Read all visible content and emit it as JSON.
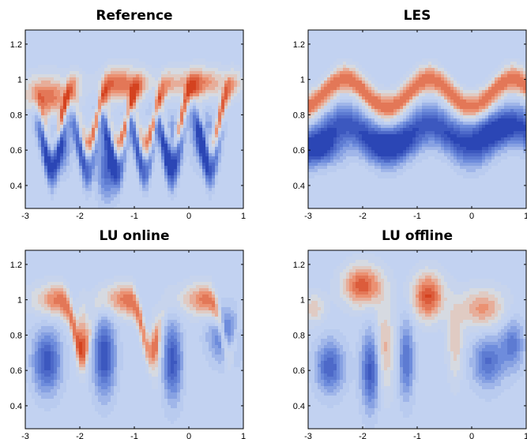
{
  "chart_data": [
    {
      "type": "contour",
      "title": "Reference",
      "xlim": [
        -3,
        1
      ],
      "ylim": [
        0.27,
        1.28
      ],
      "xticks": [
        -3,
        -2,
        -1,
        0,
        1
      ],
      "yticks": [
        0.4,
        0.6,
        0.8,
        1,
        1.2
      ],
      "xtick_labels": [
        "-3",
        "-2",
        "-1",
        "0",
        "1"
      ],
      "ytick_labels": [
        "0.4",
        "0.6",
        "0.8",
        "1",
        "1.2"
      ],
      "colormap": [
        "#2b46b5",
        "#c2d2f1",
        "#dcdcdc",
        "#d4421f"
      ]
    },
    {
      "type": "contour",
      "title": "LES",
      "xlim": [
        -3,
        1
      ],
      "ylim": [
        0.27,
        1.28
      ],
      "xticks": [
        -3,
        -2,
        -1,
        0,
        1
      ],
      "yticks": [
        0.4,
        0.6,
        0.8,
        1,
        1.2
      ],
      "xtick_labels": [
        "-3",
        "-2",
        "-1",
        "0",
        "1"
      ],
      "ytick_labels": [
        "0.4",
        "0.6",
        "0.8",
        "1",
        "1.2"
      ],
      "colormap": [
        "#2b46b5",
        "#c2d2f1",
        "#dcdcdc",
        "#d4421f"
      ]
    },
    {
      "type": "contour",
      "title": "LU online",
      "xlim": [
        -3,
        1
      ],
      "ylim": [
        0.27,
        1.28
      ],
      "xticks": [
        -3,
        -2,
        -1,
        0,
        1
      ],
      "yticks": [
        0.4,
        0.6,
        0.8,
        1,
        1.2
      ],
      "xtick_labels": [
        "-3",
        "-2",
        "-1",
        "0",
        "1"
      ],
      "ytick_labels": [
        "0.4",
        "0.6",
        "0.8",
        "1",
        "1.2"
      ],
      "colormap": [
        "#2b46b5",
        "#c2d2f1",
        "#dcdcdc",
        "#d4421f"
      ]
    },
    {
      "type": "contour",
      "title": "LU offline",
      "xlim": [
        -3,
        1
      ],
      "ylim": [
        0.27,
        1.28
      ],
      "xticks": [
        -3,
        -2,
        -1,
        0,
        1
      ],
      "yticks": [
        0.4,
        0.6,
        0.8,
        1,
        1.2
      ],
      "xtick_labels": [
        "-3",
        "-2",
        "-1",
        "0",
        "1"
      ],
      "ytick_labels": [
        "0.4",
        "0.6",
        "0.8",
        "1",
        "1.2"
      ],
      "colormap": [
        "#2b46b5",
        "#c2d2f1",
        "#dcdcdc",
        "#d4421f"
      ]
    }
  ]
}
